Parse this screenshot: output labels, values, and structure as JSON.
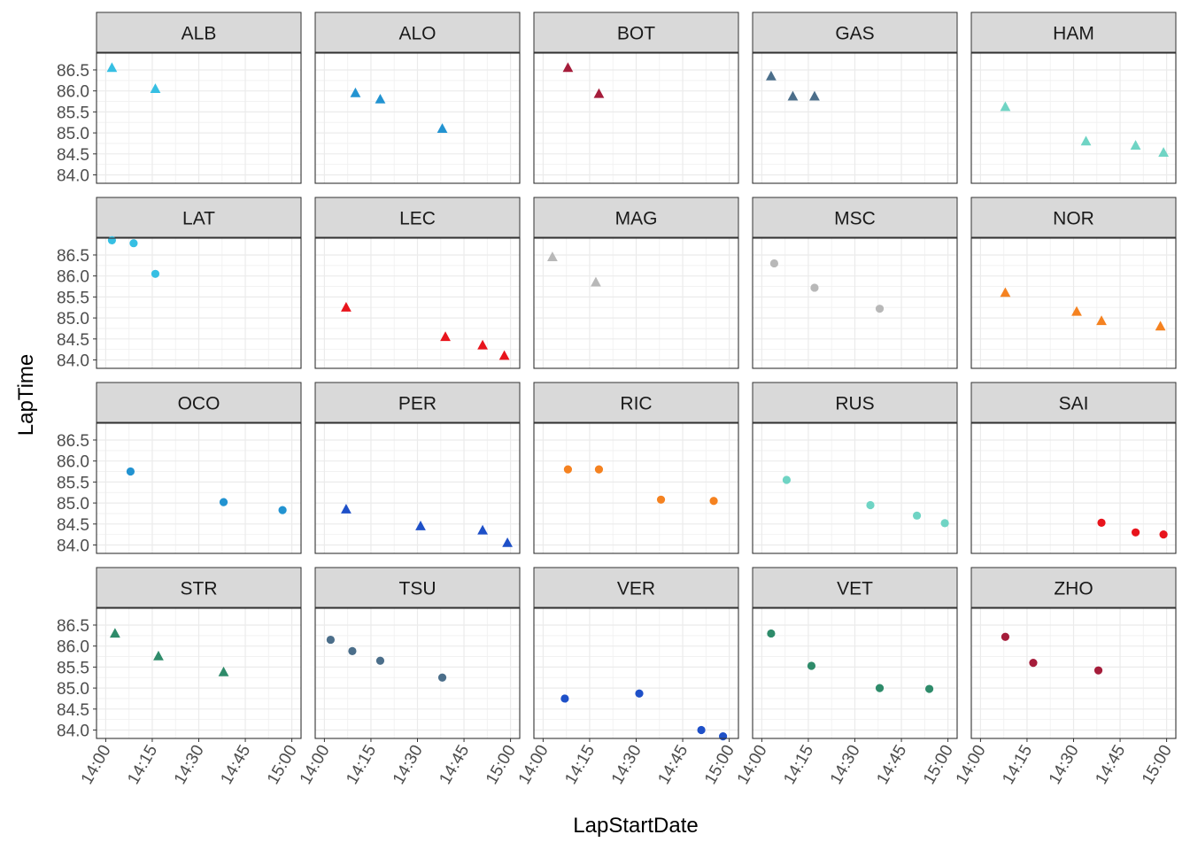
{
  "chart_data": {
    "type": "scatter",
    "xlabel": "LapStartDate",
    "ylabel": "LapTime",
    "x_ticks": [
      "14:00",
      "14:15",
      "14:30",
      "14:45",
      "15:00"
    ],
    "xlim": [
      "14:00",
      "15:00"
    ],
    "y_ticks": [
      "84.0",
      "84.5",
      "85.0",
      "85.5",
      "86.0",
      "86.5"
    ],
    "ylim": [
      83.8,
      86.9
    ],
    "grid": true,
    "legend": "none",
    "panels": [
      {
        "label": "ALB",
        "color": "#36bfe3",
        "marker": "triangle",
        "points": [
          {
            "x": "14:02",
            "y": 86.55
          },
          {
            "x": "14:16",
            "y": 86.05
          }
        ]
      },
      {
        "label": "ALO",
        "color": "#2293d1",
        "marker": "triangle",
        "points": [
          {
            "x": "14:10",
            "y": 85.95
          },
          {
            "x": "14:18",
            "y": 85.8
          },
          {
            "x": "14:38",
            "y": 85.1
          }
        ]
      },
      {
        "label": "BOT",
        "color": "#a51c3a",
        "marker": "triangle",
        "points": [
          {
            "x": "14:08",
            "y": 86.55
          },
          {
            "x": "14:18",
            "y": 85.93
          }
        ]
      },
      {
        "label": "GAS",
        "color": "#4b6e8a",
        "marker": "triangle",
        "points": [
          {
            "x": "14:03",
            "y": 86.35
          },
          {
            "x": "14:10",
            "y": 85.87
          },
          {
            "x": "14:17",
            "y": 85.87
          }
        ]
      },
      {
        "label": "HAM",
        "color": "#6fd4c4",
        "marker": "triangle",
        "points": [
          {
            "x": "14:08",
            "y": 85.62
          },
          {
            "x": "14:34",
            "y": 84.8
          },
          {
            "x": "14:50",
            "y": 84.7
          },
          {
            "x": "14:59",
            "y": 84.53
          }
        ]
      },
      {
        "label": "LAT",
        "color": "#36bfe3",
        "marker": "circle",
        "points": [
          {
            "x": "14:02",
            "y": 86.85
          },
          {
            "x": "14:09",
            "y": 86.78
          },
          {
            "x": "14:16",
            "y": 86.05
          }
        ]
      },
      {
        "label": "LEC",
        "color": "#e8141c",
        "marker": "triangle",
        "points": [
          {
            "x": "14:07",
            "y": 85.25
          },
          {
            "x": "14:39",
            "y": 84.55
          },
          {
            "x": "14:51",
            "y": 84.35
          },
          {
            "x": "14:58",
            "y": 84.1
          }
        ]
      },
      {
        "label": "MAG",
        "color": "#b8b8b8",
        "marker": "triangle",
        "points": [
          {
            "x": "14:03",
            "y": 86.45
          },
          {
            "x": "14:17",
            "y": 85.85
          }
        ]
      },
      {
        "label": "MSC",
        "color": "#b8b8b8",
        "marker": "circle",
        "points": [
          {
            "x": "14:04",
            "y": 86.3
          },
          {
            "x": "14:17",
            "y": 85.72
          },
          {
            "x": "14:38",
            "y": 85.22
          }
        ]
      },
      {
        "label": "NOR",
        "color": "#f58220",
        "marker": "triangle",
        "points": [
          {
            "x": "14:08",
            "y": 85.6
          },
          {
            "x": "14:31",
            "y": 85.15
          },
          {
            "x": "14:39",
            "y": 84.93
          },
          {
            "x": "14:58",
            "y": 84.8
          }
        ]
      },
      {
        "label": "OCO",
        "color": "#2293d1",
        "marker": "circle",
        "points": [
          {
            "x": "14:08",
            "y": 85.75
          },
          {
            "x": "14:38",
            "y": 85.02
          },
          {
            "x": "14:57",
            "y": 84.83
          }
        ]
      },
      {
        "label": "PER",
        "color": "#1e50c8",
        "marker": "triangle",
        "points": [
          {
            "x": "14:07",
            "y": 84.85
          },
          {
            "x": "14:31",
            "y": 84.45
          },
          {
            "x": "14:51",
            "y": 84.35
          },
          {
            "x": "14:59",
            "y": 84.05
          }
        ]
      },
      {
        "label": "RIC",
        "color": "#f58220",
        "marker": "circle",
        "points": [
          {
            "x": "14:08",
            "y": 85.8
          },
          {
            "x": "14:18",
            "y": 85.8
          },
          {
            "x": "14:38",
            "y": 85.08
          },
          {
            "x": "14:55",
            "y": 85.05
          }
        ]
      },
      {
        "label": "RUS",
        "color": "#6fd4c4",
        "marker": "circle",
        "points": [
          {
            "x": "14:08",
            "y": 85.55
          },
          {
            "x": "14:35",
            "y": 84.95
          },
          {
            "x": "14:50",
            "y": 84.7
          },
          {
            "x": "14:59",
            "y": 84.52
          }
        ]
      },
      {
        "label": "SAI",
        "color": "#e8141c",
        "marker": "circle",
        "points": [
          {
            "x": "14:39",
            "y": 84.53
          },
          {
            "x": "14:50",
            "y": 84.3
          },
          {
            "x": "14:59",
            "y": 84.25
          }
        ]
      },
      {
        "label": "STR",
        "color": "#2e8b6a",
        "marker": "triangle",
        "points": [
          {
            "x": "14:03",
            "y": 86.3
          },
          {
            "x": "14:17",
            "y": 85.76
          },
          {
            "x": "14:38",
            "y": 85.38
          }
        ]
      },
      {
        "label": "TSU",
        "color": "#4b6e8a",
        "marker": "circle",
        "points": [
          {
            "x": "14:02",
            "y": 86.15
          },
          {
            "x": "14:09",
            "y": 85.88
          },
          {
            "x": "14:18",
            "y": 85.65
          },
          {
            "x": "14:38",
            "y": 85.25
          }
        ]
      },
      {
        "label": "VER",
        "color": "#1e50c8",
        "marker": "circle",
        "points": [
          {
            "x": "14:07",
            "y": 84.75
          },
          {
            "x": "14:31",
            "y": 84.87
          },
          {
            "x": "14:51",
            "y": 84.0
          },
          {
            "x": "14:58",
            "y": 83.85
          }
        ]
      },
      {
        "label": "VET",
        "color": "#2e8b6a",
        "marker": "circle",
        "points": [
          {
            "x": "14:03",
            "y": 86.3
          },
          {
            "x": "14:16",
            "y": 85.53
          },
          {
            "x": "14:38",
            "y": 85.0
          },
          {
            "x": "14:54",
            "y": 84.98
          }
        ]
      },
      {
        "label": "ZHO",
        "color": "#a51c3a",
        "marker": "circle",
        "points": [
          {
            "x": "14:08",
            "y": 86.22
          },
          {
            "x": "14:17",
            "y": 85.6
          },
          {
            "x": "14:38",
            "y": 85.42
          }
        ]
      }
    ]
  }
}
